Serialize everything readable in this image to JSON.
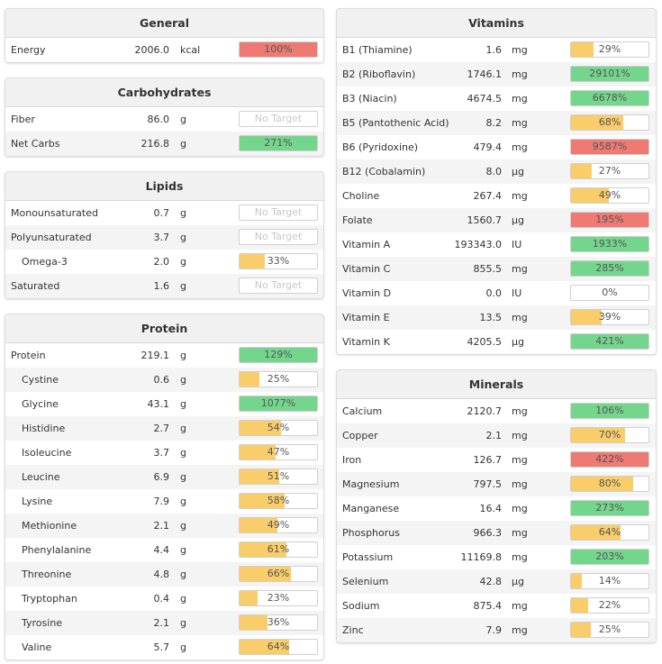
{
  "colors": {
    "red": "#ee7a73",
    "green": "#74d68d",
    "yellow": "#f8cd6a"
  },
  "panels": [
    {
      "key": "general",
      "title": "General",
      "rows": [
        {
          "name": "Energy",
          "amount": "2006.0",
          "unit": "kcal",
          "pct_label": "100%",
          "fill": 100,
          "color": "red"
        }
      ]
    },
    {
      "key": "carbohydrates",
      "title": "Carbohydrates",
      "rows": [
        {
          "name": "Fiber",
          "amount": "86.0",
          "unit": "g",
          "pct_label": "No Target",
          "fill": 0,
          "color": "none"
        },
        {
          "name": "Net Carbs",
          "amount": "216.8",
          "unit": "g",
          "pct_label": "271%",
          "fill": 100,
          "color": "green"
        }
      ]
    },
    {
      "key": "lipids",
      "title": "Lipids",
      "rows": [
        {
          "name": "Monounsaturated",
          "amount": "0.7",
          "unit": "g",
          "pct_label": "No Target",
          "fill": 0,
          "color": "none"
        },
        {
          "name": "Polyunsaturated",
          "amount": "3.7",
          "unit": "g",
          "pct_label": "No Target",
          "fill": 0,
          "color": "none"
        },
        {
          "name": "Omega-3",
          "amount": "2.0",
          "unit": "g",
          "pct_label": "33%",
          "fill": 33,
          "color": "yellow",
          "indent": true
        },
        {
          "name": "Saturated",
          "amount": "1.6",
          "unit": "g",
          "pct_label": "No Target",
          "fill": 0,
          "color": "none"
        }
      ]
    },
    {
      "key": "protein",
      "title": "Protein",
      "rows": [
        {
          "name": "Protein",
          "amount": "219.1",
          "unit": "g",
          "pct_label": "129%",
          "fill": 100,
          "color": "green"
        },
        {
          "name": "Cystine",
          "amount": "0.6",
          "unit": "g",
          "pct_label": "25%",
          "fill": 25,
          "color": "yellow",
          "indent": true
        },
        {
          "name": "Glycine",
          "amount": "43.1",
          "unit": "g",
          "pct_label": "1077%",
          "fill": 100,
          "color": "green",
          "indent": true
        },
        {
          "name": "Histidine",
          "amount": "2.7",
          "unit": "g",
          "pct_label": "54%",
          "fill": 54,
          "color": "yellow",
          "indent": true
        },
        {
          "name": "Isoleucine",
          "amount": "3.7",
          "unit": "g",
          "pct_label": "47%",
          "fill": 47,
          "color": "yellow",
          "indent": true
        },
        {
          "name": "Leucine",
          "amount": "6.9",
          "unit": "g",
          "pct_label": "51%",
          "fill": 51,
          "color": "yellow",
          "indent": true
        },
        {
          "name": "Lysine",
          "amount": "7.9",
          "unit": "g",
          "pct_label": "58%",
          "fill": 58,
          "color": "yellow",
          "indent": true
        },
        {
          "name": "Methionine",
          "amount": "2.1",
          "unit": "g",
          "pct_label": "49%",
          "fill": 49,
          "color": "yellow",
          "indent": true
        },
        {
          "name": "Phenylalanine",
          "amount": "4.4",
          "unit": "g",
          "pct_label": "61%",
          "fill": 61,
          "color": "yellow",
          "indent": true
        },
        {
          "name": "Threonine",
          "amount": "4.8",
          "unit": "g",
          "pct_label": "66%",
          "fill": 66,
          "color": "yellow",
          "indent": true
        },
        {
          "name": "Tryptophan",
          "amount": "0.4",
          "unit": "g",
          "pct_label": "23%",
          "fill": 23,
          "color": "yellow",
          "indent": true
        },
        {
          "name": "Tyrosine",
          "amount": "2.1",
          "unit": "g",
          "pct_label": "36%",
          "fill": 36,
          "color": "yellow",
          "indent": true
        },
        {
          "name": "Valine",
          "amount": "5.7",
          "unit": "g",
          "pct_label": "64%",
          "fill": 64,
          "color": "yellow",
          "indent": true
        }
      ]
    },
    {
      "key": "vitamins",
      "title": "Vitamins",
      "rows": [
        {
          "name": "B1 (Thiamine)",
          "amount": "1.6",
          "unit": "mg",
          "pct_label": "29%",
          "fill": 29,
          "color": "yellow"
        },
        {
          "name": "B2 (Riboflavin)",
          "amount": "1746.1",
          "unit": "mg",
          "pct_label": "29101%",
          "fill": 100,
          "color": "green"
        },
        {
          "name": "B3 (Niacin)",
          "amount": "4674.5",
          "unit": "mg",
          "pct_label": "6678%",
          "fill": 100,
          "color": "green"
        },
        {
          "name": "B5 (Pantothenic Acid)",
          "amount": "8.2",
          "unit": "mg",
          "pct_label": "68%",
          "fill": 68,
          "color": "yellow"
        },
        {
          "name": "B6 (Pyridoxine)",
          "amount": "479.4",
          "unit": "mg",
          "pct_label": "9587%",
          "fill": 100,
          "color": "red"
        },
        {
          "name": "B12 (Cobalamin)",
          "amount": "8.0",
          "unit": "µg",
          "pct_label": "27%",
          "fill": 27,
          "color": "yellow"
        },
        {
          "name": "Choline",
          "amount": "267.4",
          "unit": "mg",
          "pct_label": "49%",
          "fill": 49,
          "color": "yellow"
        },
        {
          "name": "Folate",
          "amount": "1560.7",
          "unit": "µg",
          "pct_label": "195%",
          "fill": 100,
          "color": "red"
        },
        {
          "name": "Vitamin A",
          "amount": "193343.0",
          "unit": "IU",
          "pct_label": "1933%",
          "fill": 100,
          "color": "green"
        },
        {
          "name": "Vitamin C",
          "amount": "855.5",
          "unit": "mg",
          "pct_label": "285%",
          "fill": 100,
          "color": "green"
        },
        {
          "name": "Vitamin D",
          "amount": "0.0",
          "unit": "IU",
          "pct_label": "0%",
          "fill": 0,
          "color": "yellow"
        },
        {
          "name": "Vitamin E",
          "amount": "13.5",
          "unit": "mg",
          "pct_label": "39%",
          "fill": 39,
          "color": "yellow"
        },
        {
          "name": "Vitamin K",
          "amount": "4205.5",
          "unit": "µg",
          "pct_label": "421%",
          "fill": 100,
          "color": "green"
        }
      ]
    },
    {
      "key": "minerals",
      "title": "Minerals",
      "rows": [
        {
          "name": "Calcium",
          "amount": "2120.7",
          "unit": "mg",
          "pct_label": "106%",
          "fill": 100,
          "color": "green"
        },
        {
          "name": "Copper",
          "amount": "2.1",
          "unit": "mg",
          "pct_label": "70%",
          "fill": 70,
          "color": "yellow"
        },
        {
          "name": "Iron",
          "amount": "126.7",
          "unit": "mg",
          "pct_label": "422%",
          "fill": 100,
          "color": "red"
        },
        {
          "name": "Magnesium",
          "amount": "797.5",
          "unit": "mg",
          "pct_label": "80%",
          "fill": 80,
          "color": "yellow"
        },
        {
          "name": "Manganese",
          "amount": "16.4",
          "unit": "mg",
          "pct_label": "273%",
          "fill": 100,
          "color": "green"
        },
        {
          "name": "Phosphorus",
          "amount": "966.3",
          "unit": "mg",
          "pct_label": "64%",
          "fill": 64,
          "color": "yellow"
        },
        {
          "name": "Potassium",
          "amount": "11169.8",
          "unit": "mg",
          "pct_label": "203%",
          "fill": 100,
          "color": "green"
        },
        {
          "name": "Selenium",
          "amount": "42.8",
          "unit": "µg",
          "pct_label": "14%",
          "fill": 14,
          "color": "yellow"
        },
        {
          "name": "Sodium",
          "amount": "875.4",
          "unit": "mg",
          "pct_label": "22%",
          "fill": 22,
          "color": "yellow"
        },
        {
          "name": "Zinc",
          "amount": "7.9",
          "unit": "mg",
          "pct_label": "25%",
          "fill": 25,
          "color": "yellow"
        }
      ]
    }
  ]
}
